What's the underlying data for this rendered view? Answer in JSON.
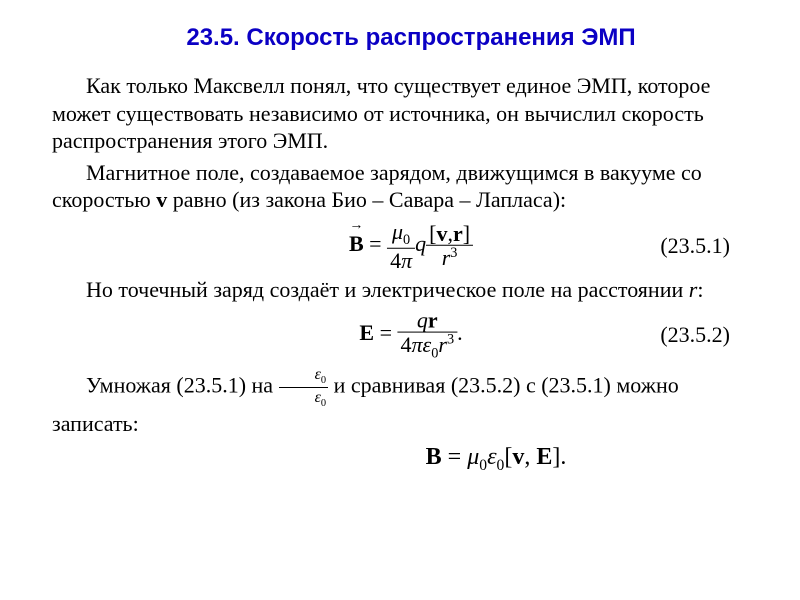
{
  "colors": {
    "title": "#0b00c4",
    "text": "#000000",
    "background": "#ffffff"
  },
  "typography": {
    "title_fontsize": 24,
    "body_fontsize": 22,
    "title_family": "Arial",
    "body_family": "Times New Roman"
  },
  "title": "23.5. Скорость распространения ЭМП",
  "para1": "Как только Максвелл понял, что существует единое ЭМП, которое может существовать независимо от источника, он вычислил скорость распространения этого ЭМП.",
  "para2_a": "Магнитное поле, создаваемое зарядом, движущимся в вакууме со скоростью ",
  "para2_v": "v",
  "para2_b": " равно (из закона Био – Савара – Лапласа):",
  "eq1": {
    "lhs": "B",
    "eq": " = ",
    "frac1_num_mu": "μ",
    "frac1_num_sub": "0",
    "frac1_den_4": "4",
    "frac1_den_pi": "π",
    "q": "q",
    "frac2_num_open": "[",
    "frac2_num_v": "v",
    "frac2_num_comma": ",",
    "frac2_num_r": "r",
    "frac2_num_close": "]",
    "frac2_den_r": "r",
    "frac2_den_pow": "3",
    "num": "(23.5.1)"
  },
  "para3_a": "Но точечный заряд создаёт и электрическое поле на расстоянии ",
  "para3_r": "r",
  "para3_b": ":",
  "eq2": {
    "lhs": "E",
    "eq": " = ",
    "num_q": "q",
    "num_r": "r",
    "den_4": "4",
    "den_pi": "π",
    "den_eps": "ε",
    "den_eps_sub": "0",
    "den_r": "r",
    "den_r_pow": "3",
    "dot": ".",
    "num": "(23.5.2)"
  },
  "para4_a": "Умножая (23.5.1) на ",
  "para4_frac_num_eps": "ε",
  "para4_frac_num_sub": "0",
  "para4_frac_den_eps": "ε",
  "para4_frac_den_sub": "0",
  "para4_b": " и сравнивая (23.5.2) с (23.5.1) можно записать:",
  "eq3": {
    "B": "B",
    "eq": " = ",
    "mu": "μ",
    "mu_sub": "0",
    "eps": "ε",
    "eps_sub": "0",
    "open": "[",
    "v": "v",
    "comma": ", ",
    "E": "E",
    "close": "].",
    "nbsp": " "
  }
}
